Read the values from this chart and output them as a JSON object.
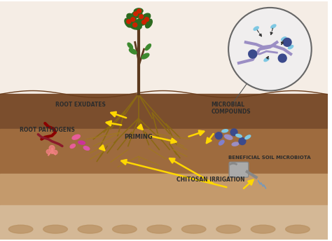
{
  "bg_color": "#ffffff",
  "sky_color": "#f5f0eb",
  "soil_top_color": "#8B5E3C",
  "soil_mid_color": "#A0714F",
  "soil_bottom_color": "#C4A882",
  "soil_deep_color": "#D4B896",
  "text_color": "#2c2c2c",
  "arrow_color": "#FFD700",
  "labels": {
    "root_exudates": "ROOT EXUDATES",
    "root_pathogens": "ROOT PATHOGENS",
    "priming": "PRIMING",
    "microbial_compounds": "MICROBIAL\nCOMPOUNDS",
    "beneficial": "BENEFICIAL SOIL MICROBIOTA",
    "chitosan": "CHITOSAN IRRIGATION"
  },
  "circle_color": "#e8e8e8",
  "circle_outline": "#555555",
  "fungal_color": "#9B8EC4",
  "microbe_color": "#3B4A8C",
  "microbe_light": "#7EC8E3",
  "pathogen_pink": "#E85D9A",
  "pathogen_dark": "#8B1A2A",
  "pathogen_magenta": "#CC3399",
  "watering_can_color": "#9B9B9B"
}
